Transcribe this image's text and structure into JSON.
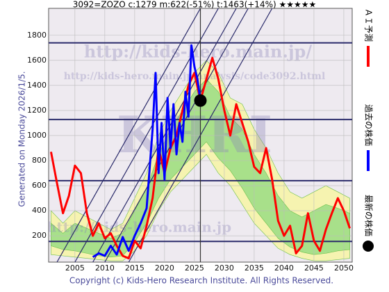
{
  "chart_data": {
    "type": "line",
    "title": "3092=ZOZO    c:1279  m:622(-51%)  t:1463(+14%)  ★★★★★",
    "side_note": "Generated on Monday 2026/1/5.",
    "footer": "Copyright (c) Kids-Hero Research Institute. All Rights Reserved.",
    "watermarks": [
      "http://kids-hero.main.jp/",
      "http://kids-hero.main.jp/analysis/code3092.html",
      "KHRI",
      "http://kids-hero.main.jp"
    ],
    "xlim": [
      2000.6,
      2051.4
    ],
    "xticks": [
      2005,
      2010,
      2015,
      2020,
      2025,
      2030,
      2035,
      2040,
      2045,
      2050
    ],
    "ylim": [
      -10,
      2015
    ],
    "yticks": [
      200,
      400,
      600,
      800,
      1000,
      1200,
      1400,
      1600,
      1800
    ],
    "grid": true,
    "hlines": [
      1740,
      1128,
      640,
      155
    ],
    "vline": 2026,
    "trend_lines": [
      {
        "x": [
          2002,
          2026
        ],
        "y": [
          -10,
          2015
        ]
      },
      {
        "x": [
          2005,
          2029
        ],
        "y": [
          -10,
          2015
        ]
      },
      {
        "x": [
          2008,
          2032
        ],
        "y": [
          -10,
          2015
        ]
      },
      {
        "x": [
          2010,
          2034
        ],
        "y": [
          -10,
          2015
        ]
      },
      {
        "x": [
          2014,
          2038
        ],
        "y": [
          -10,
          2015
        ]
      }
    ],
    "bands": [
      {
        "color": "#f6f3b0",
        "x": [
          2001,
          2003,
          2005,
          2007,
          2009,
          2011,
          2013,
          2015,
          2017,
          2019,
          2021,
          2023,
          2025,
          2027,
          2029,
          2031,
          2033,
          2035,
          2037,
          2039,
          2041,
          2043,
          2045,
          2047,
          2049,
          2051
        ],
        "upper": [
          400,
          300,
          400,
          350,
          300,
          250,
          300,
          500,
          700,
          1000,
          1200,
          1350,
          1500,
          1600,
          1500,
          1300,
          1250,
          1050,
          900,
          700,
          550,
          500,
          550,
          600,
          550,
          500
        ],
        "lower": [
          50,
          40,
          30,
          20,
          10,
          0,
          0,
          80,
          200,
          400,
          550,
          650,
          750,
          850,
          700,
          600,
          450,
          300,
          200,
          100,
          50,
          20,
          0,
          0,
          10,
          20
        ]
      },
      {
        "color": "#a8e08a",
        "x": [
          2001,
          2003,
          2005,
          2007,
          2009,
          2011,
          2013,
          2015,
          2017,
          2019,
          2021,
          2023,
          2025,
          2027,
          2029,
          2031,
          2033,
          2035,
          2037,
          2039,
          2041,
          2043,
          2045,
          2047,
          2049,
          2051
        ],
        "upper": [
          300,
          220,
          300,
          260,
          220,
          180,
          220,
          400,
          580,
          850,
          1050,
          1200,
          1350,
          1450,
          1350,
          1150,
          1050,
          850,
          700,
          520,
          400,
          350,
          400,
          450,
          420,
          380
        ],
        "lower": [
          120,
          90,
          80,
          60,
          40,
          30,
          40,
          150,
          300,
          500,
          650,
          750,
          850,
          950,
          820,
          720,
          580,
          420,
          300,
          180,
          110,
          70,
          50,
          60,
          80,
          90
        ]
      }
    ],
    "series": [
      {
        "name": "ＡＩ予測",
        "color": "#ff0000",
        "x": [
          2001,
          2002,
          2003,
          2004,
          2005,
          2006,
          2007,
          2008,
          2009,
          2010,
          2011,
          2012,
          2013,
          2014,
          2015,
          2016,
          2017,
          2018,
          2019,
          2020,
          2021,
          2022,
          2023,
          2024,
          2025,
          2026,
          2027,
          2028,
          2029,
          2030,
          2031,
          2032,
          2033,
          2034,
          2035,
          2036,
          2037,
          2038,
          2039,
          2040,
          2041,
          2042,
          2043,
          2044,
          2045,
          2046,
          2047,
          2048,
          2049,
          2050,
          2051
        ],
        "values": [
          870,
          620,
          380,
          520,
          760,
          700,
          380,
          200,
          300,
          180,
          220,
          120,
          40,
          20,
          160,
          100,
          280,
          500,
          900,
          700,
          900,
          1000,
          1200,
          1400,
          1500,
          1279,
          1450,
          1620,
          1450,
          1200,
          1000,
          1250,
          1100,
          950,
          750,
          700,
          900,
          650,
          320,
          200,
          280,
          60,
          120,
          380,
          160,
          80,
          250,
          380,
          500,
          400,
          260
        ]
      },
      {
        "name": "過去の株価",
        "color": "#0000ff",
        "x": [
          2008,
          2009,
          2010,
          2011,
          2012,
          2013,
          2014,
          2015,
          2016,
          2017,
          2018,
          2018.5,
          2019,
          2019.5,
          2020,
          2020.5,
          2021,
          2021.5,
          2022,
          2022.5,
          2023,
          2023.5,
          2024,
          2024.5,
          2025,
          2025.5,
          2026
        ],
        "values": [
          30,
          60,
          40,
          120,
          50,
          190,
          80,
          200,
          300,
          420,
          1050,
          1500,
          700,
          1100,
          650,
          1300,
          900,
          1250,
          850,
          1100,
          950,
          1350,
          1150,
          1720,
          1550,
          1450,
          1279
        ]
      },
      {
        "name": "最新の株価",
        "color": "#000000",
        "x": [
          2026
        ],
        "values": [
          1279
        ]
      }
    ]
  }
}
